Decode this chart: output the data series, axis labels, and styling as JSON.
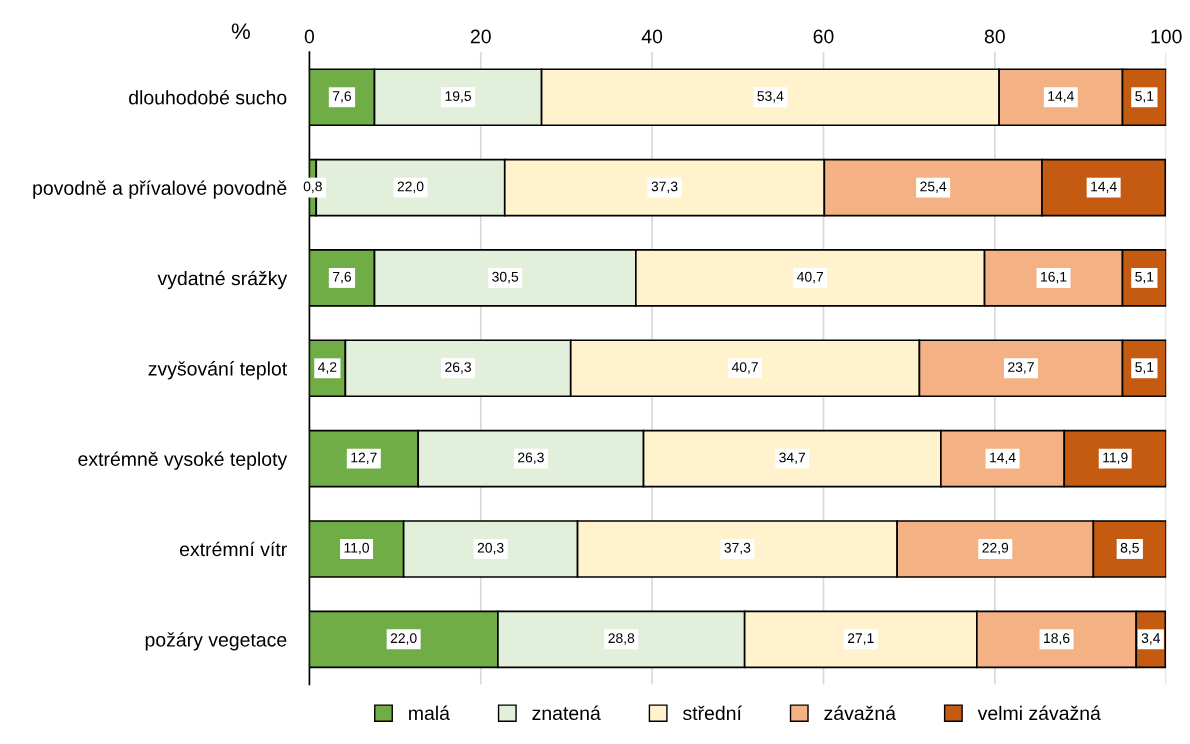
{
  "chart_data": {
    "type": "bar",
    "orientation": "horizontal",
    "stacked": true,
    "xlabel": "%",
    "categories": [
      "dlouhodobé sucho",
      "povodně a přívalové povodně",
      "vydatné srážky",
      "zvyšování teplot",
      "extrémně vysoké teploty",
      "extrémní vítr",
      "požáry vegetace"
    ],
    "series": [
      {
        "name": "malá",
        "color": "#70ad47",
        "values": [
          7.6,
          0.8,
          7.6,
          4.2,
          12.7,
          11.0,
          22.0
        ],
        "value_labels": [
          "7,6",
          "0,8",
          "7,6",
          "4,2",
          "12,7",
          "11,0",
          "22,0"
        ]
      },
      {
        "name": "znatená",
        "color": "#e2efda",
        "values": [
          19.5,
          22.0,
          30.5,
          26.3,
          26.3,
          20.3,
          28.8
        ],
        "value_labels": [
          "19,5",
          "22,0",
          "30,5",
          "26,3",
          "26,3",
          "20,3",
          "28,8"
        ]
      },
      {
        "name": "střední",
        "color": "#fff2cc",
        "values": [
          53.4,
          37.3,
          40.7,
          40.7,
          34.7,
          37.3,
          27.1
        ],
        "value_labels": [
          "53,4",
          "37,3",
          "40,7",
          "40,7",
          "34,7",
          "37,3",
          "27,1"
        ]
      },
      {
        "name": "závažná",
        "color": "#f4b183",
        "values": [
          14.4,
          25.4,
          16.1,
          23.7,
          14.4,
          22.9,
          18.6
        ],
        "value_labels": [
          "14,4",
          "25,4",
          "16,1",
          "23,7",
          "14,4",
          "22,9",
          "18,6"
        ]
      },
      {
        "name": "velmi závažná",
        "color": "#c55a11",
        "values": [
          5.1,
          14.4,
          5.1,
          5.1,
          11.9,
          8.5,
          3.4
        ],
        "value_labels": [
          "5,1",
          "14,4",
          "5,1",
          "5,1",
          "11,9",
          "8,5",
          "3,4"
        ]
      }
    ],
    "xlim": [
      0,
      100
    ],
    "xticks": [
      0,
      20,
      40,
      60,
      80,
      100
    ],
    "grid": "x",
    "legend": "bottom"
  }
}
